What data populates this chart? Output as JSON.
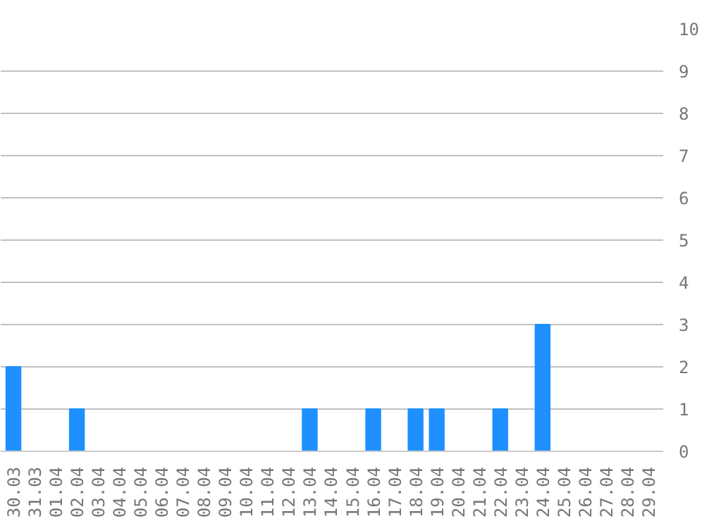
{
  "chart_data": {
    "type": "bar",
    "categories": [
      "30.03",
      "31.03",
      "01.04",
      "02.04",
      "03.04",
      "04.04",
      "05.04",
      "06.04",
      "07.04",
      "08.04",
      "09.04",
      "10.04",
      "11.04",
      "12.04",
      "13.04",
      "14.04",
      "15.04",
      "16.04",
      "17.04",
      "18.04",
      "19.04",
      "20.04",
      "21.04",
      "22.04",
      "23.04",
      "24.04",
      "25.04",
      "26.04",
      "27.04",
      "28.04",
      "29.04"
    ],
    "values": [
      2,
      0,
      0,
      1,
      0,
      0,
      0,
      0,
      0,
      0,
      0,
      0,
      0,
      0,
      1,
      0,
      0,
      1,
      0,
      1,
      1,
      0,
      0,
      1,
      0,
      3,
      0,
      0,
      0,
      0,
      0
    ],
    "color": "#1e90ff",
    "ylim": [
      0,
      10
    ],
    "yticks": [
      0,
      1,
      2,
      3,
      4,
      5,
      6,
      7,
      8,
      9,
      10
    ],
    "grid": "y"
  }
}
